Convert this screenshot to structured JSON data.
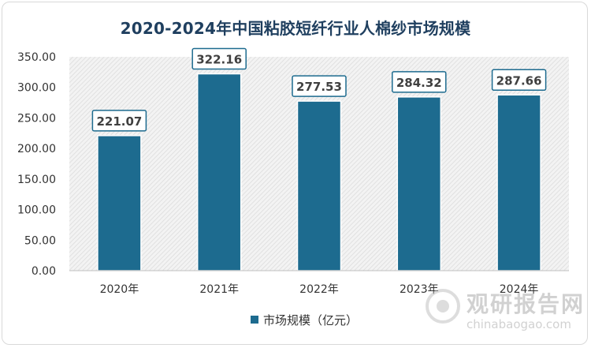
{
  "chart_data": {
    "type": "bar",
    "title": "2020-2024年中国粘胶短纤行业人棉纱市场规模",
    "categories": [
      "2020年",
      "2021年",
      "2022年",
      "2023年",
      "2024年"
    ],
    "series": [
      {
        "name": "市场规模（亿元）",
        "values": [
          221.07,
          322.16,
          277.53,
          284.32,
          287.66
        ]
      }
    ],
    "data_labels": [
      "221.07",
      "322.16",
      "277.53",
      "284.32",
      "287.66"
    ],
    "yticks": [
      "0.00",
      "50.00",
      "100.00",
      "150.00",
      "200.00",
      "250.00",
      "300.00",
      "350.00"
    ],
    "ylim": [
      0,
      350
    ],
    "legend_position": "bottom",
    "grid": "hatched-background",
    "colors": {
      "bar": "#1d6b8f",
      "bar_edge": "#ffffff",
      "title": "#1f3f5f"
    }
  },
  "watermark": {
    "name": "观研报告网",
    "site": "chinabaogao.com"
  }
}
